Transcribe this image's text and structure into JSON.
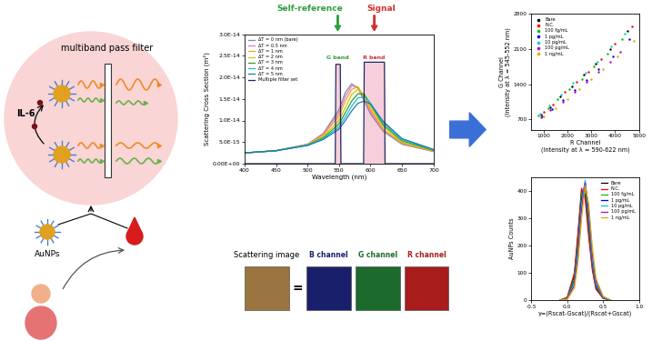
{
  "left_panel": {
    "filter": "multiband pass filter",
    "analyte": "IL-6",
    "probe": "AuNPs"
  },
  "headers": [
    {
      "text": "Self-reference",
      "color": "#2e9e3e"
    },
    {
      "text": "Signal",
      "color": "#d03030"
    }
  ],
  "scattering_image": {
    "title": "Scattering image",
    "equals": "=",
    "color": "#9b7540",
    "channels": [
      {
        "name": "B channel",
        "color": "#1a1f6b"
      },
      {
        "name": "G channel",
        "color": "#1d6b2c"
      },
      {
        "name": "R channel",
        "color": "#a81c1c"
      }
    ]
  },
  "chart_data": [
    {
      "type": "line",
      "x_label": "Wavelength (nm)",
      "y_label": "Scattering Cross Section (m²)",
      "xlim": [
        400,
        700
      ],
      "xticks": [
        400,
        450,
        500,
        550,
        600,
        650,
        700
      ],
      "ylim": [
        0,
        3e-14
      ],
      "yticks": [
        {
          "value": 0,
          "label": "0.00E+00"
        },
        {
          "value": 5e-15,
          "label": "5.0E-15"
        },
        {
          "value": 1e-14,
          "label": "1.0E-14"
        },
        {
          "value": 1.5e-14,
          "label": "1.5E-14"
        },
        {
          "value": 2e-14,
          "label": "2.0E-14"
        },
        {
          "value": 2.5e-14,
          "label": "2.5E-14"
        },
        {
          "value": 3e-14,
          "label": "3.0E-14"
        }
      ],
      "legend": "upper left",
      "annotations": [
        {
          "text": "G band",
          "x": 548,
          "y": 2.4e-14,
          "color": "#2e9e3e"
        },
        {
          "text": "R band",
          "x": 606,
          "y": 2.4e-14,
          "color": "#d03030"
        }
      ],
      "series": [
        {
          "name": "ΔT = 0 nm (bare)",
          "color": "#7f8c9a",
          "x": [
            400,
            450,
            500,
            525,
            550,
            560,
            570,
            580,
            590,
            600,
            620,
            650,
            700
          ],
          "values": [
            2.5e-15,
            3e-15,
            4.5e-15,
            7e-15,
            1.25e-14,
            1.65e-14,
            1.85e-14,
            1.75e-14,
            1.45e-14,
            1.15e-14,
            7.5e-15,
            4.5e-15,
            2.8e-15
          ]
        },
        {
          "name": "ΔT = 0.5 nm",
          "color": "#e377c2",
          "x": [
            400,
            450,
            500,
            525,
            550,
            560,
            570,
            580,
            590,
            600,
            620,
            650,
            700
          ],
          "values": [
            2.5e-15,
            3e-15,
            4.5e-15,
            6.8e-15,
            1.18e-14,
            1.55e-14,
            1.8e-14,
            1.77e-14,
            1.5e-14,
            1.2e-14,
            7.8e-15,
            4.7e-15,
            2.9e-15
          ]
        },
        {
          "name": "ΔT = 1 nm",
          "color": "#ff9f1c",
          "x": [
            400,
            450,
            500,
            525,
            550,
            560,
            570,
            580,
            590,
            600,
            620,
            650,
            700
          ],
          "values": [
            2.5e-15,
            3e-15,
            4.4e-15,
            6.6e-15,
            1.1e-14,
            1.45e-14,
            1.72e-14,
            1.78e-14,
            1.55e-14,
            1.25e-14,
            8e-15,
            4.8e-15,
            2.9e-15
          ]
        },
        {
          "name": "ΔT = 2 nm",
          "color": "#c8c800",
          "x": [
            400,
            450,
            500,
            525,
            550,
            560,
            570,
            580,
            590,
            600,
            620,
            650,
            700
          ],
          "values": [
            2.5e-15,
            3e-15,
            4.4e-15,
            6.3e-15,
            1e-14,
            1.3e-14,
            1.6e-14,
            1.72e-14,
            1.6e-14,
            1.32e-14,
            8.6e-15,
            5e-15,
            3e-15
          ]
        },
        {
          "name": "ΔT = 3 nm",
          "color": "#2ca02c",
          "x": [
            400,
            450,
            500,
            525,
            550,
            560,
            570,
            580,
            590,
            600,
            620,
            650,
            700
          ],
          "values": [
            2.5e-15,
            3e-15,
            4.3e-15,
            6e-15,
            9.2e-15,
            1.18e-14,
            1.45e-14,
            1.62e-14,
            1.6e-14,
            1.38e-14,
            9e-15,
            5.3e-15,
            3.1e-15
          ]
        },
        {
          "name": "ΔT = 4 nm",
          "color": "#17becf",
          "x": [
            400,
            450,
            500,
            525,
            550,
            560,
            570,
            580,
            590,
            600,
            620,
            650,
            700
          ],
          "values": [
            2.5e-15,
            3e-15,
            4.3e-15,
            5.8e-15,
            8.5e-15,
            1.08e-14,
            1.33e-14,
            1.52e-14,
            1.55e-14,
            1.4e-14,
            9.5e-15,
            5.6e-15,
            3.2e-15
          ]
        },
        {
          "name": "ΔT = 5 nm",
          "color": "#1f77b4",
          "x": [
            400,
            450,
            500,
            525,
            550,
            560,
            570,
            580,
            590,
            600,
            620,
            650,
            700
          ],
          "values": [
            2.5e-15,
            3e-15,
            4.2e-15,
            5.6e-15,
            8e-15,
            1e-14,
            1.22e-14,
            1.4e-14,
            1.45e-14,
            1.38e-14,
            9.8e-15,
            5.8e-15,
            3.3e-15
          ]
        },
        {
          "name": "Multiple filter set",
          "color": "#1b2a63",
          "type": "area",
          "x": [
            400,
            544,
            545,
            552,
            553,
            589,
            590,
            622,
            623,
            700
          ],
          "values": [
            0,
            0,
            2.3e-14,
            2.3e-14,
            0,
            0,
            2.35e-14,
            2.35e-14,
            0,
            0
          ]
        }
      ]
    },
    {
      "type": "scatter",
      "x_label": "R Channel\n(Intensity at λ = 590-622 nm)",
      "y_label": "G Channel\n(Intensity at λ = 545-552 nm)",
      "xlim": [
        500,
        5000
      ],
      "xticks": [
        1000,
        2000,
        3000,
        4000,
        5000
      ],
      "ylim": [
        500,
        2800
      ],
      "yticks": [
        700,
        1400,
        2100,
        2800
      ],
      "legend": "upper left",
      "marker": "o",
      "series": [
        {
          "name": "Bare",
          "color": "#000000",
          "x": [
            900,
            1300,
            1700,
            2200,
            2700,
            3200,
            3800,
            4500
          ],
          "values": [
            800,
            950,
            1150,
            1350,
            1600,
            1800,
            2100,
            2450
          ]
        },
        {
          "name": "N.C.",
          "color": "#ff0000",
          "x": [
            1000,
            1400,
            1900,
            2400,
            2900,
            3400,
            4000,
            4700
          ],
          "values": [
            850,
            1000,
            1250,
            1450,
            1650,
            1900,
            2200,
            2550
          ]
        },
        {
          "name": "100 fg/mL",
          "color": "#00c000",
          "x": [
            800,
            1200,
            1600,
            2100,
            2600,
            3100,
            3700,
            4300
          ],
          "values": [
            780,
            920,
            1100,
            1300,
            1500,
            1750,
            2000,
            2300
          ]
        },
        {
          "name": "1 pg/mL",
          "color": "#0000ff",
          "x": [
            950,
            1350,
            1800,
            2300,
            2800,
            3300,
            3900,
            4600
          ],
          "values": [
            760,
            900,
            1080,
            1280,
            1480,
            1700,
            1950,
            2300
          ]
        },
        {
          "name": "10 pg/mL",
          "color": "#00d0d0",
          "x": [
            850,
            1250,
            1750,
            2250,
            2750,
            3250,
            3850,
            4400
          ],
          "values": [
            820,
            980,
            1200,
            1420,
            1620,
            1850,
            2150,
            2400
          ]
        },
        {
          "name": "100 pg/mL",
          "color": "#c000c0",
          "x": [
            900,
            1300,
            1800,
            2300,
            2800,
            3300,
            3800,
            4200
          ],
          "values": [
            740,
            880,
            1050,
            1250,
            1450,
            1650,
            1850,
            2050
          ]
        },
        {
          "name": "1 ng/mL",
          "color": "#d4b000",
          "x": [
            1000,
            1500,
            2000,
            2500,
            3000,
            3500,
            4100,
            4800
          ],
          "values": [
            760,
            930,
            1100,
            1300,
            1500,
            1700,
            1950,
            2250
          ]
        }
      ]
    },
    {
      "type": "line",
      "x_label": "γ=(Rscat-Gscat)/(Rscat+Gscat)",
      "y_label": "AuNPs Counts",
      "xlim": [
        -0.5,
        1.0
      ],
      "xticks": [
        -0.5,
        {
          "value": 0,
          "label": "0.0"
        },
        0.5,
        {
          "value": 1,
          "label": "1.0"
        }
      ],
      "ylim": [
        0,
        450
      ],
      "yticks": [
        0,
        100,
        200,
        300,
        400
      ],
      "legend": "upper right",
      "series": [
        {
          "name": "Bare",
          "color": "#000000",
          "x": [
            -0.1,
            0.0,
            0.1,
            0.15,
            0.2,
            0.25,
            0.3,
            0.35,
            0.4,
            0.5,
            0.6
          ],
          "values": [
            0,
            8,
            90,
            230,
            400,
            390,
            250,
            120,
            45,
            8,
            0
          ]
        },
        {
          "name": "N.C.",
          "color": "#ff0000",
          "x": [
            -0.1,
            0.0,
            0.1,
            0.15,
            0.2,
            0.25,
            0.3,
            0.35,
            0.4,
            0.5,
            0.6
          ],
          "values": [
            0,
            10,
            100,
            250,
            410,
            370,
            230,
            110,
            40,
            6,
            0
          ]
        },
        {
          "name": "100 fg/mL",
          "color": "#00c000",
          "x": [
            -0.1,
            0.0,
            0.1,
            0.15,
            0.2,
            0.25,
            0.3,
            0.35,
            0.4,
            0.5,
            0.6
          ],
          "values": [
            0,
            6,
            80,
            210,
            390,
            410,
            270,
            130,
            50,
            8,
            0
          ]
        },
        {
          "name": "1 pg/mL",
          "color": "#0000ff",
          "x": [
            -0.1,
            0.0,
            0.1,
            0.15,
            0.2,
            0.25,
            0.3,
            0.35,
            0.4,
            0.5,
            0.6
          ],
          "values": [
            0,
            5,
            70,
            190,
            370,
            430,
            290,
            140,
            55,
            9,
            0
          ]
        },
        {
          "name": "10 pg/mL",
          "color": "#00d0d0",
          "x": [
            -0.1,
            0.0,
            0.1,
            0.15,
            0.2,
            0.25,
            0.3,
            0.35,
            0.4,
            0.5,
            0.6
          ],
          "values": [
            0,
            5,
            65,
            180,
            350,
            440,
            310,
            150,
            60,
            10,
            0
          ]
        },
        {
          "name": "100 pg/mL",
          "color": "#c000c0",
          "x": [
            -0.1,
            0.0,
            0.1,
            0.15,
            0.2,
            0.25,
            0.3,
            0.35,
            0.4,
            0.5,
            0.6
          ],
          "values": [
            0,
            4,
            55,
            160,
            330,
            430,
            330,
            170,
            70,
            12,
            0
          ]
        },
        {
          "name": "1 ng/mL",
          "color": "#d4b000",
          "x": [
            -0.1,
            0.0,
            0.1,
            0.15,
            0.2,
            0.25,
            0.3,
            0.35,
            0.4,
            0.5,
            0.6
          ],
          "values": [
            0,
            3,
            45,
            140,
            300,
            420,
            350,
            190,
            80,
            14,
            0
          ]
        }
      ]
    }
  ]
}
